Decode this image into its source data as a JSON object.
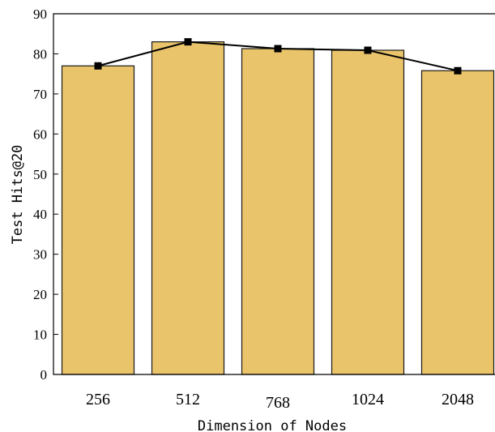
{
  "chart_data": {
    "type": "bar",
    "categories": [
      "256",
      "512",
      "768",
      "1024",
      "2048"
    ],
    "values": [
      77.0,
      83.0,
      81.3,
      80.9,
      75.8
    ],
    "line_values": [
      77.0,
      83.0,
      81.3,
      80.9,
      75.8
    ],
    "xlabel": "Dimension of Nodes",
    "ylabel": "Test Hits@20",
    "ylim": [
      0,
      90
    ],
    "yticks": [
      0,
      10,
      20,
      30,
      40,
      50,
      60,
      70,
      80,
      90
    ],
    "grid": false,
    "colors": {
      "bar_fill": "#E9C46A",
      "bar_edge": "#1a1a1a",
      "line": "#000000",
      "marker": "#000000"
    }
  }
}
